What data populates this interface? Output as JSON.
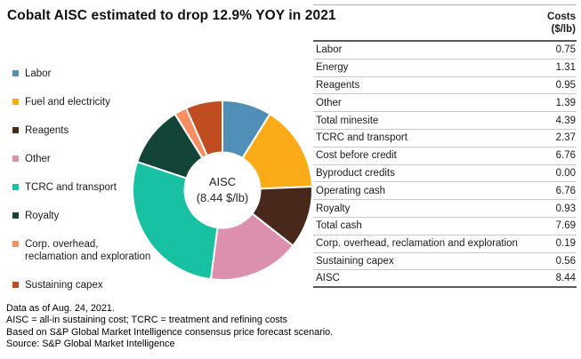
{
  "title": "Cobalt AISC estimated to drop 12.9% YOY in 2021",
  "chart_data": {
    "type": "pie",
    "donut": true,
    "title": "Cobalt AISC estimated to drop 12.9% YOY in 2021",
    "legend_position": "left",
    "center_label_line1": "AISC",
    "center_label_line2": "(8.44 $/lb)",
    "total": 8.45,
    "segments": [
      {
        "label": "Labor",
        "legend_label": "Labor",
        "value": 0.75,
        "color": "#5090b8"
      },
      {
        "label": "Fuel and electricity",
        "legend_label": "Fuel and electricity",
        "value": 1.31,
        "color": "#fbab18"
      },
      {
        "label": "Reagents",
        "legend_label": "Reagents",
        "value": 0.95,
        "color": "#47281a"
      },
      {
        "label": "Other",
        "legend_label": "Other",
        "value": 1.39,
        "color": "#dd8fae"
      },
      {
        "label": "TCRC and transport",
        "legend_label": "TCRC and transport",
        "value": 2.37,
        "color": "#17c1a2"
      },
      {
        "label": "Royalty",
        "legend_label": "Royalty",
        "value": 0.93,
        "color": "#124438"
      },
      {
        "label": "Corp. overhead, reclamation and exploration",
        "legend_label": "Corp. overhead,\nreclamation and exploration",
        "value": 0.19,
        "color": "#f78f62"
      },
      {
        "label": "Sustaining capex",
        "legend_label": "Sustaining capex",
        "value": 0.56,
        "color": "#c04d20"
      }
    ]
  },
  "table": {
    "header_line1": "Costs",
    "header_line2": "($/lb)",
    "rows": [
      {
        "label": "Labor",
        "value": "0.75"
      },
      {
        "label": "Energy",
        "value": "1.31"
      },
      {
        "label": "Reagents",
        "value": "0.95"
      },
      {
        "label": "Other",
        "value": "1.39"
      },
      {
        "label": "Total minesite",
        "value": "4.39"
      },
      {
        "label": "TCRC and transport",
        "value": "2.37"
      },
      {
        "label": "Cost before credit",
        "value": "6.76"
      },
      {
        "label": "Byproduct credits",
        "value": "0.00"
      },
      {
        "label": "Operating cash",
        "value": "6.76"
      },
      {
        "label": "Royalty",
        "value": "0.93"
      },
      {
        "label": "Total cash",
        "value": "7.69"
      },
      {
        "label": "Corp. overhead, reclamation and exploration",
        "value": "0.19"
      },
      {
        "label": "Sustaining capex",
        "value": "0.56"
      },
      {
        "label": "AISC",
        "value": "8.44"
      }
    ]
  },
  "footnotes": [
    "Data as of Aug. 24, 2021.",
    "AISC = all-in sustaining cost; TCRC = treatment and refining costs",
    "Based on S&P Global Market Intelligence consensus price forecast scenario.",
    "Source: S&P Global Market Intelligence"
  ]
}
